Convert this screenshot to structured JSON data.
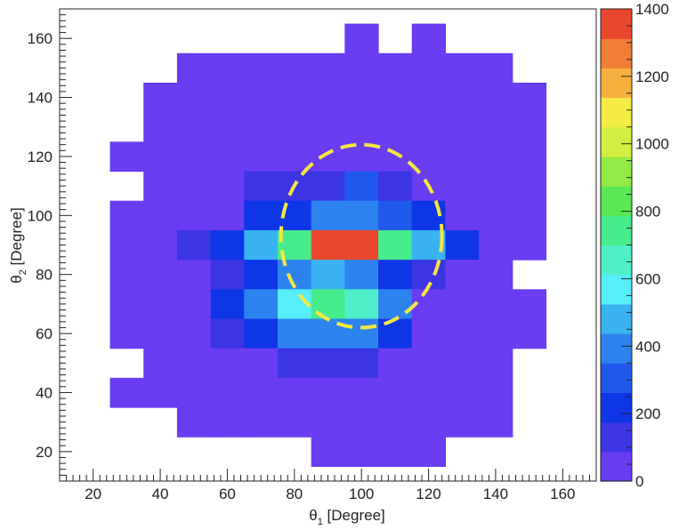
{
  "chart_data": {
    "type": "heatmap",
    "title": "",
    "xlabel": {
      "base": "θ",
      "sub": "1",
      "rest": " [Degree]"
    },
    "ylabel": {
      "base": "θ",
      "sub": "2",
      "rest": " [Degree]"
    },
    "xlim": [
      10,
      170
    ],
    "ylim": [
      10,
      170
    ],
    "x_ticks": [
      20,
      40,
      60,
      80,
      100,
      120,
      140,
      160
    ],
    "y_ticks": [
      20,
      40,
      60,
      80,
      100,
      120,
      140,
      160
    ],
    "bin_width": 10,
    "x_bins": [
      30,
      40,
      50,
      60,
      70,
      80,
      90,
      100,
      110,
      120,
      130,
      140,
      150,
      160
    ],
    "y_bins": [
      160,
      150,
      140,
      130,
      120,
      110,
      100,
      90,
      80,
      70,
      60,
      50,
      40,
      30,
      20
    ],
    "values": [
      [
        null,
        null,
        null,
        null,
        null,
        null,
        null,
        10,
        null,
        10,
        null,
        null,
        null,
        null
      ],
      [
        null,
        null,
        10,
        10,
        10,
        10,
        10,
        10,
        10,
        10,
        10,
        10,
        null,
        null
      ],
      [
        null,
        10,
        10,
        10,
        10,
        10,
        10,
        10,
        10,
        10,
        10,
        10,
        10,
        null
      ],
      [
        null,
        10,
        10,
        10,
        10,
        10,
        80,
        80,
        10,
        10,
        10,
        10,
        10,
        null
      ],
      [
        10,
        10,
        10,
        10,
        10,
        10,
        10,
        10,
        10,
        10,
        10,
        10,
        10,
        null
      ],
      [
        null,
        10,
        10,
        10,
        100,
        160,
        160,
        280,
        160,
        80,
        10,
        10,
        10,
        null
      ],
      [
        10,
        10,
        10,
        80,
        180,
        200,
        420,
        420,
        300,
        180,
        10,
        10,
        10,
        null
      ],
      [
        10,
        10,
        150,
        200,
        520,
        750,
        1350,
        1350,
        780,
        470,
        200,
        80,
        10,
        null
      ],
      [
        10,
        10,
        10,
        100,
        180,
        350,
        520,
        350,
        200,
        100,
        10,
        10,
        null,
        null
      ],
      [
        10,
        10,
        10,
        180,
        400,
        600,
        700,
        620,
        380,
        80,
        10,
        10,
        10,
        null
      ],
      [
        10,
        10,
        10,
        130,
        180,
        360,
        380,
        420,
        200,
        80,
        10,
        10,
        10,
        null
      ],
      [
        null,
        10,
        10,
        80,
        80,
        130,
        130,
        130,
        80,
        10,
        10,
        10,
        null,
        null
      ],
      [
        10,
        10,
        10,
        10,
        10,
        10,
        10,
        80,
        10,
        10,
        10,
        10,
        null,
        null
      ],
      [
        null,
        null,
        10,
        10,
        10,
        10,
        10,
        10,
        10,
        10,
        10,
        10,
        null,
        null
      ],
      [
        null,
        null,
        null,
        null,
        null,
        null,
        10,
        10,
        10,
        10,
        null,
        null,
        null,
        null
      ]
    ],
    "annotations": [
      {
        "type": "circle",
        "style": "dashed",
        "color": "#f5e642",
        "center": [
          100,
          93
        ],
        "radius_x": 24,
        "radius_y": 31
      }
    ],
    "colorbar": {
      "min": 0,
      "max": 1400,
      "ticks": [
        0,
        200,
        400,
        600,
        800,
        1000,
        1200,
        1400
      ],
      "colors": [
        "#6a3cf2",
        "#3b35e4",
        "#0f36e6",
        "#1f59ec",
        "#2d83ee",
        "#39b3f2",
        "#55eef9",
        "#4ff0c9",
        "#47ec8b",
        "#57e853",
        "#93ea45",
        "#d4ed42",
        "#f3ec45",
        "#f6b03d",
        "#f27d35",
        "#e9472d"
      ]
    },
    "grid": false
  }
}
